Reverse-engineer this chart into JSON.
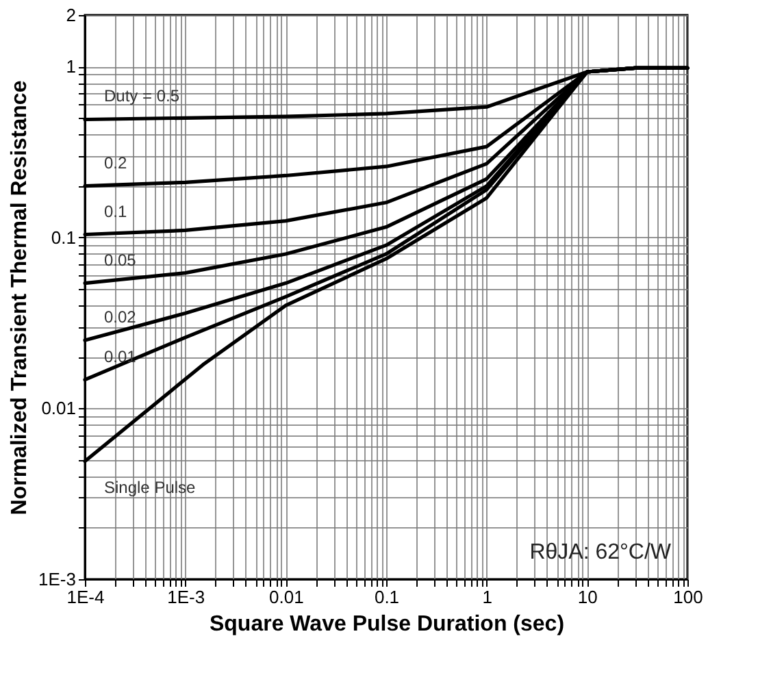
{
  "chart_data": {
    "type": "line",
    "xlabel": "Square Wave Pulse Duration (sec)",
    "ylabel": "Normalized Transient Thermal Resistance",
    "log": "xy",
    "grid": true,
    "marker": "none",
    "line_style": "solid",
    "xlim": [
      0.0001,
      100
    ],
    "ylim": [
      0.001,
      2
    ],
    "xticks": [
      {
        "value": 0.0001,
        "label": "1E-4"
      },
      {
        "value": 0.0002,
        "label": null
      },
      {
        "value": 0.0003,
        "label": null
      },
      {
        "value": 0.0004,
        "label": null
      },
      {
        "value": 0.0005,
        "label": null
      },
      {
        "value": 0.0006,
        "label": null
      },
      {
        "value": 0.0007,
        "label": null
      },
      {
        "value": 0.0008,
        "label": null
      },
      {
        "value": 0.0009,
        "label": null
      },
      {
        "value": 0.001,
        "label": "1E-3"
      },
      {
        "value": 0.002,
        "label": null
      },
      {
        "value": 0.003,
        "label": null
      },
      {
        "value": 0.004,
        "label": null
      },
      {
        "value": 0.005,
        "label": null
      },
      {
        "value": 0.006,
        "label": null
      },
      {
        "value": 0.007,
        "label": null
      },
      {
        "value": 0.008,
        "label": null
      },
      {
        "value": 0.009,
        "label": null
      },
      0.01,
      {
        "value": 0.02,
        "label": null
      },
      {
        "value": 0.03,
        "label": null
      },
      {
        "value": 0.04,
        "label": null
      },
      {
        "value": 0.05,
        "label": null
      },
      {
        "value": 0.06,
        "label": null
      },
      {
        "value": 0.07,
        "label": null
      },
      {
        "value": 0.08,
        "label": null
      },
      {
        "value": 0.09,
        "label": null
      },
      0.1,
      {
        "value": 0.2,
        "label": null
      },
      {
        "value": 0.3,
        "label": null
      },
      {
        "value": 0.4,
        "label": null
      },
      {
        "value": 0.5,
        "label": null
      },
      {
        "value": 0.6,
        "label": null
      },
      {
        "value": 0.7,
        "label": null
      },
      {
        "value": 0.8,
        "label": null
      },
      {
        "value": 0.9,
        "label": null
      },
      1,
      {
        "value": 2,
        "label": null
      },
      {
        "value": 3,
        "label": null
      },
      {
        "value": 4,
        "label": null
      },
      {
        "value": 5,
        "label": null
      },
      {
        "value": 6,
        "label": null
      },
      {
        "value": 7,
        "label": null
      },
      {
        "value": 8,
        "label": null
      },
      {
        "value": 9,
        "label": null
      },
      10,
      {
        "value": 20,
        "label": null
      },
      {
        "value": 30,
        "label": null
      },
      {
        "value": 40,
        "label": null
      },
      {
        "value": 50,
        "label": null
      },
      {
        "value": 60,
        "label": null
      },
      {
        "value": 70,
        "label": null
      },
      {
        "value": 80,
        "label": null
      },
      {
        "value": 90,
        "label": null
      },
      100
    ],
    "yticks": [
      {
        "value": 0.001,
        "label": "1E-3"
      },
      {
        "value": 0.002,
        "label": null
      },
      {
        "value": 0.003,
        "label": null
      },
      {
        "value": 0.004,
        "label": null
      },
      {
        "value": 0.005,
        "label": null
      },
      {
        "value": 0.006,
        "label": null
      },
      {
        "value": 0.007,
        "label": null
      },
      {
        "value": 0.008,
        "label": null
      },
      {
        "value": 0.009,
        "label": null
      },
      0.01,
      {
        "value": 0.02,
        "label": null
      },
      {
        "value": 0.03,
        "label": null
      },
      {
        "value": 0.04,
        "label": null
      },
      {
        "value": 0.05,
        "label": null
      },
      {
        "value": 0.06,
        "label": null
      },
      {
        "value": 0.07,
        "label": null
      },
      {
        "value": 0.08,
        "label": null
      },
      {
        "value": 0.09,
        "label": null
      },
      0.1,
      {
        "value": 0.2,
        "label": null
      },
      {
        "value": 0.3,
        "label": null
      },
      {
        "value": 0.4,
        "label": null
      },
      {
        "value": 0.5,
        "label": null
      },
      {
        "value": 0.6,
        "label": null
      },
      {
        "value": 0.7,
        "label": null
      },
      {
        "value": 0.8,
        "label": null
      },
      {
        "value": 0.9,
        "label": null
      },
      1,
      2
    ],
    "x": [
      0.0001,
      0.001,
      0.01,
      0.1,
      1,
      10,
      30,
      100
    ],
    "series": [
      {
        "name": "Duty = 0.5",
        "color": "#000000",
        "values": [
          0.49,
          0.5,
          0.51,
          0.53,
          0.58,
          0.93,
          0.98,
          0.98
        ]
      },
      {
        "name": "0.2",
        "color": "#000000",
        "values": [
          0.2,
          0.21,
          0.23,
          0.26,
          0.34,
          0.93,
          0.98,
          0.98
        ]
      },
      {
        "name": "0.1",
        "color": "#000000",
        "values": [
          0.104,
          0.11,
          0.125,
          0.16,
          0.27,
          0.93,
          0.98,
          0.98
        ]
      },
      {
        "name": "0.05",
        "color": "#000000",
        "values": [
          0.054,
          0.062,
          0.08,
          0.115,
          0.22,
          0.93,
          0.98,
          0.98
        ]
      },
      {
        "name": "0.02",
        "color": "#000000",
        "values": [
          0.025,
          0.036,
          0.054,
          0.09,
          0.2,
          0.93,
          0.98,
          0.98
        ]
      },
      {
        "name": "0.01",
        "color": "#000000",
        "values": [
          0.0147,
          0.026,
          0.045,
          0.08,
          0.19,
          0.93,
          0.98,
          0.98
        ]
      },
      {
        "name": "Single Pulse",
        "color": "#000000",
        "x": [
          0.0001,
          0.0015,
          0.01,
          0.1,
          1,
          10,
          30,
          100
        ],
        "values": [
          0.0049,
          0.018,
          0.04,
          0.075,
          0.17,
          0.93,
          0.98,
          0.98
        ]
      }
    ],
    "annotations": [
      "RθJA: 62°C/W"
    ]
  }
}
